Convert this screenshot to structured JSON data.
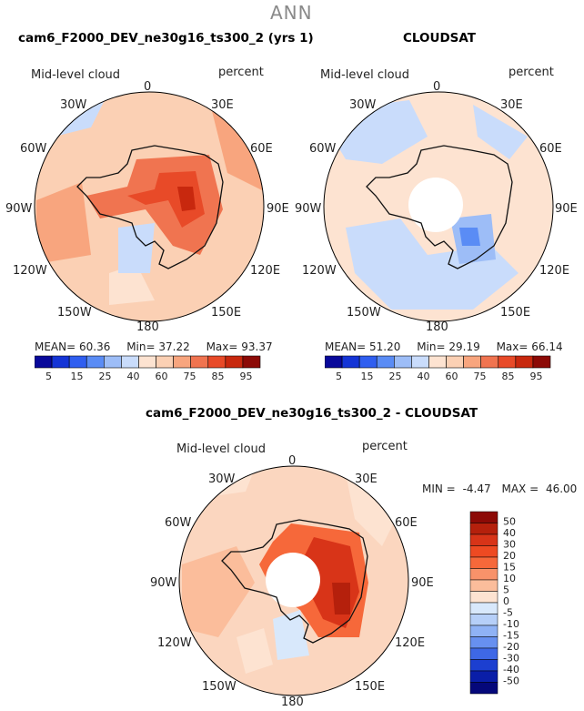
{
  "suptitle": "ANN",
  "colors": {
    "coastline": "#111111",
    "pole_hole": "#ffffff",
    "ocean_fill_top_left": "#fbd0b4",
    "ocean_fill_top_right": "#fde3d1",
    "ocean_fill_bottom": "#fbd6bf"
  },
  "chart_data": [
    {
      "type": "heatmap",
      "projection": "south-polar-stereographic",
      "title": "cam6_F2000_DEV_ne30g16_ts300_2 (yrs 1)",
      "variable": "Mid-level cloud",
      "units": "percent",
      "lon_labels": [
        "0",
        "30E",
        "60E",
        "90E",
        "120E",
        "150E",
        "180",
        "150W",
        "120W",
        "90W",
        "60W",
        "30W"
      ],
      "stats": {
        "mean_label": "MEAN=",
        "mean": "60.36",
        "min_label": "Min=",
        "min": "37.22",
        "max_label": "Max=",
        "max": "93.37"
      },
      "colorbar": {
        "levels": [
          "5",
          "15",
          "25",
          "40",
          "60",
          "75",
          "85",
          "95"
        ],
        "colors": [
          "#08089a",
          "#1434d6",
          "#2f5ef0",
          "#5a8cf5",
          "#9dbdf7",
          "#c9dcfb",
          "#fde3d1",
          "#fbd0b4",
          "#f8a57e",
          "#f07450",
          "#e84a28",
          "#c8280e",
          "#8c0a06"
        ]
      }
    },
    {
      "type": "heatmap",
      "projection": "south-polar-stereographic",
      "title": "CLOUDSAT",
      "variable": "Mid-level cloud",
      "units": "percent",
      "lon_labels": [
        "0",
        "30E",
        "60E",
        "90E",
        "120E",
        "150E",
        "180",
        "150W",
        "120W",
        "90W",
        "60W",
        "30W"
      ],
      "stats": {
        "mean_label": "MEAN=",
        "mean": "51.20",
        "min_label": "Min=",
        "min": "29.19",
        "max_label": "Max=",
        "max": "66.14"
      },
      "colorbar": {
        "levels": [
          "5",
          "15",
          "25",
          "40",
          "60",
          "75",
          "85",
          "95"
        ],
        "colors": [
          "#08089a",
          "#1434d6",
          "#2f5ef0",
          "#5a8cf5",
          "#9dbdf7",
          "#c9dcfb",
          "#fde3d1",
          "#fbd0b4",
          "#f8a57e",
          "#f07450",
          "#e84a28",
          "#c8280e",
          "#8c0a06"
        ]
      }
    },
    {
      "type": "heatmap",
      "projection": "south-polar-stereographic",
      "title": "cam6_F2000_DEV_ne30g16_ts300_2 - CLOUDSAT",
      "variable": "Mid-level cloud",
      "units": "percent",
      "lon_labels": [
        "0",
        "30E",
        "60E",
        "90E",
        "120E",
        "150E",
        "180",
        "150W",
        "120W",
        "90W",
        "60W",
        "30W"
      ],
      "stats": {
        "min_label": "MIN =",
        "min": "-4.47",
        "max_label": "MAX =",
        "max": "46.00"
      },
      "colorbar": {
        "levels": [
          "50",
          "40",
          "30",
          "20",
          "15",
          "10",
          "5",
          "0",
          "-5",
          "-10",
          "-15",
          "-20",
          "-30",
          "-40",
          "-50"
        ],
        "colors": [
          "#8c0a06",
          "#b5200c",
          "#d83418",
          "#ee4a22",
          "#f6683a",
          "#f8926a",
          "#fbbd9b",
          "#fde3d1",
          "#d8e8fb",
          "#b6cff8",
          "#8fb2f5",
          "#6790f0",
          "#3e68e6",
          "#1c3fd0",
          "#0a1ea8",
          "#05087a"
        ]
      }
    }
  ]
}
